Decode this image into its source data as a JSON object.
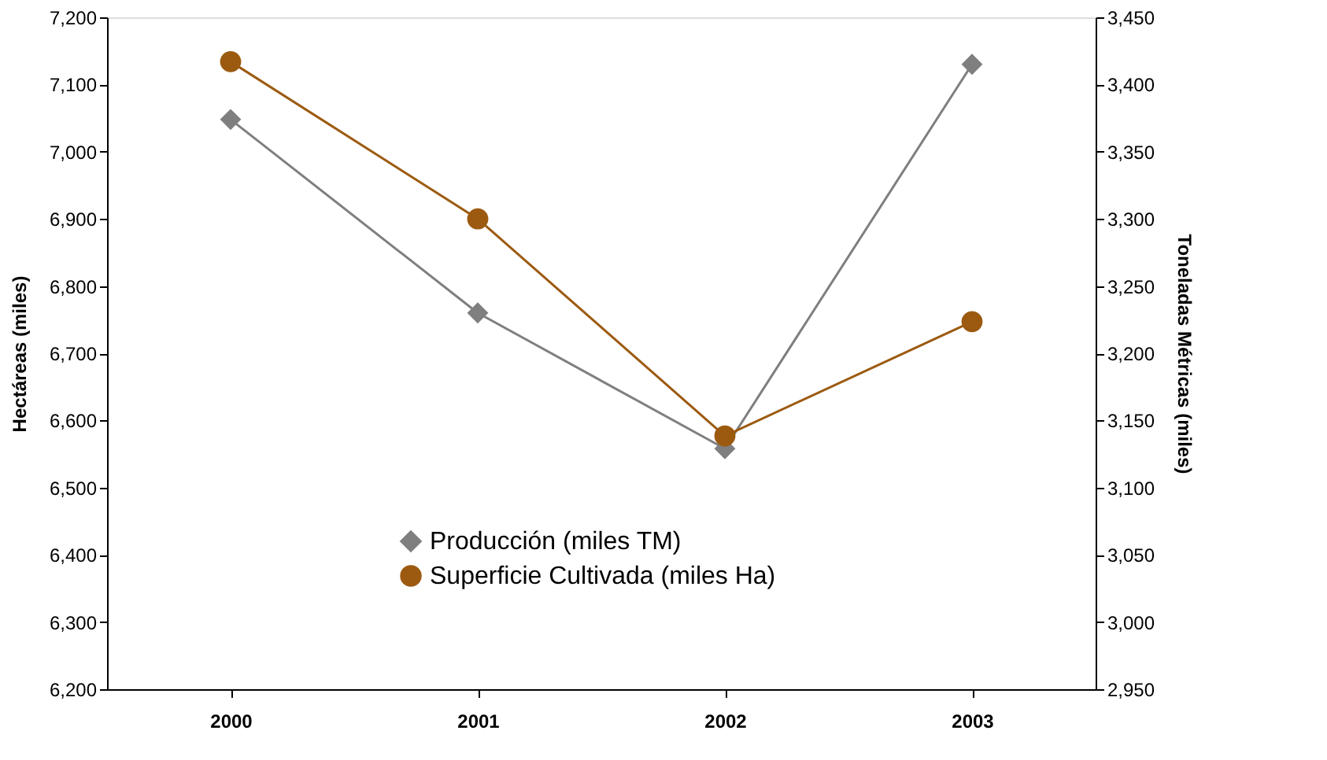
{
  "chart_data": {
    "type": "line",
    "categories": [
      "2000",
      "2001",
      "2002",
      "2003"
    ],
    "ylabel": "Hectáreas (miles)",
    "y2label": "Toneladas Métricas (miles)",
    "series": [
      {
        "name": "Producción (miles TM)",
        "color": "#7f7f7f",
        "marker": "diamond",
        "axis": "y2",
        "values": [
          3374,
          3230,
          3129,
          3415
        ]
      },
      {
        "name": "Superficie Cultivada (miles Ha)",
        "color": "#9c5a10",
        "marker": "circle",
        "values": [
          7134,
          6900,
          6577,
          6747
        ]
      }
    ],
    "ylim": [
      6200,
      7200
    ],
    "yticks": [
      {
        "value": 6200,
        "label": "6,200"
      },
      {
        "value": 6300,
        "label": "6,300"
      },
      {
        "value": 6400,
        "label": "6,400"
      },
      {
        "value": 6500,
        "label": "6,500"
      },
      {
        "value": 6600,
        "label": "6,600"
      },
      {
        "value": 6700,
        "label": "6,700"
      },
      {
        "value": 6800,
        "label": "6,800"
      },
      {
        "value": 6900,
        "label": "6,900"
      },
      {
        "value": 7000,
        "label": "7,000"
      },
      {
        "value": 7100,
        "label": "7,100"
      },
      {
        "value": 7200,
        "label": "7,200"
      }
    ],
    "y2lim": [
      2950,
      3450
    ],
    "y2ticks": [
      {
        "value": 2950,
        "label": "2,950"
      },
      {
        "value": 3000,
        "label": "3,000"
      },
      {
        "value": 3050,
        "label": "3,050"
      },
      {
        "value": 3100,
        "label": "3,100"
      },
      {
        "value": 3150,
        "label": "3,150"
      },
      {
        "value": 3200,
        "label": "3,200"
      },
      {
        "value": 3250,
        "label": "3,250"
      },
      {
        "value": 3300,
        "label": "3,300"
      },
      {
        "value": 3350,
        "label": "3,350"
      },
      {
        "value": 3400,
        "label": "3,400"
      },
      {
        "value": 3450,
        "label": "3,450"
      }
    ],
    "grid": false,
    "legend": "bottom",
    "line_style": "solid"
  }
}
